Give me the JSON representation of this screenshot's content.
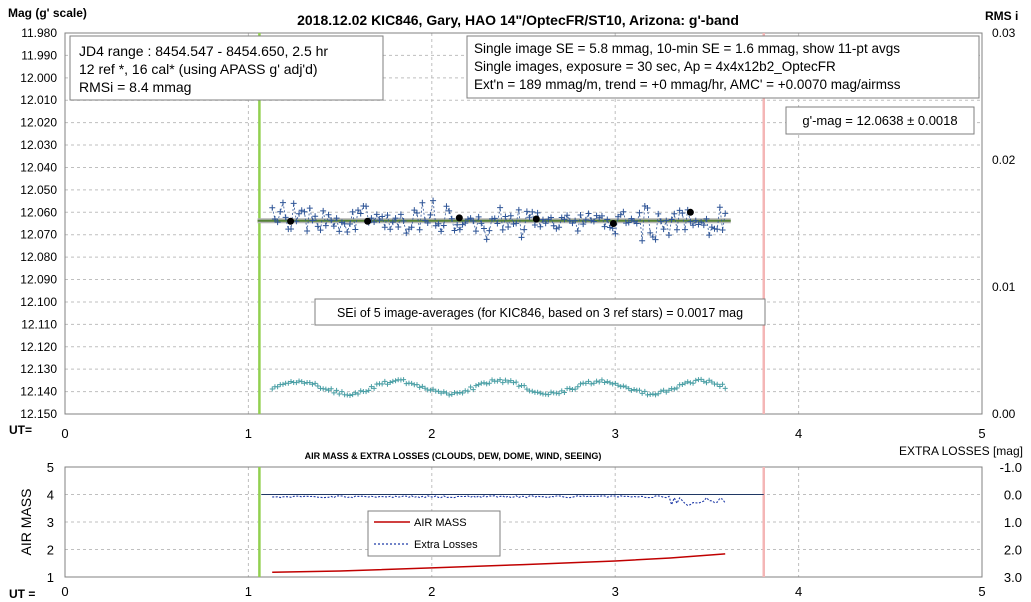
{
  "colors": {
    "grid": "#bfbfbf",
    "start_line": "#92d050",
    "end_line": "#f4b6b6",
    "mag_series": "#2f5597",
    "avg_points": "#000000",
    "mean_line": "#548235",
    "mean_band": "#b4b4b4",
    "rms_series": "#4a9fa5",
    "airmass_line": "#c00000",
    "extra_losses_line": "#1f3aa8",
    "box_border": "#7f7f7f"
  },
  "texts": {
    "title": "2018.12.02 KIC846, Gary, HAO 14\"/OptecFR/ST10, Arizona: g'-band",
    "mag_axis_label": "Mag (g' scale)",
    "rms_axis_label": "RMS i",
    "ut_label_top": "UT=",
    "ut_label_bottom": "UT =",
    "info_left": [
      "JD4 range : 8454.547 - 8454.650,  2.5  hr",
      "12 ref *, 16 cal* (using APASS g' adj'd)",
      "RMSi = 8.4 mmag"
    ],
    "info_right": [
      "Single image SE = 5.8 mmag, 10-min SE = 1.6 mmag, show  11-pt avgs",
      "Single images, exposure = 30 sec, Ap = 4x4x12b2_OptecFR",
      "Ext'n = 189 mmag/m, trend =  +0 mmag/hr, AMC' = +0.0070 mag/airmss"
    ],
    "gmag_box": "g'-mag = 12.0638 ± 0.0018",
    "sei_box": "SEi of 5 image-averages (for KIC846, based on 3 ref stars) = 0.0017 mag",
    "bottom_title": "AIR MASS & EXTRA LOSSES (CLOUDS, DEW, DOME, WIND, SEEING)",
    "extra_losses_label": "EXTRA LOSSES [mag]",
    "airmass_axis_label": "AIR MASS",
    "legend_airmass": "AIR MASS",
    "legend_extra": "Extra Losses"
  },
  "chart_data": [
    {
      "type": "scatter",
      "title": "2018.12.02 KIC846, Gary, HAO 14\"/OptecFR/ST10, Arizona: g'-band",
      "xlabel": "UT=",
      "ylabel": "Mag (g' scale)",
      "y2label": "RMS i",
      "xlim": [
        0,
        5
      ],
      "ylim": [
        11.98,
        12.15
      ],
      "y_inverted": true,
      "y2lim": [
        0,
        0.03
      ],
      "x_ticks": [
        "0",
        "1",
        "2",
        "3",
        "4",
        "5"
      ],
      "y_ticks": [
        "11.980",
        "11.990",
        "12.000",
        "12.010",
        "12.020",
        "12.030",
        "12.040",
        "12.050",
        "12.060",
        "12.070",
        "12.080",
        "12.090",
        "12.100",
        "12.110",
        "12.120",
        "12.130",
        "12.140",
        "12.150"
      ],
      "y2_ticks": [
        "0.00",
        "0.01",
        "0.02",
        "0.03"
      ],
      "grid": true,
      "vertical_markers": [
        {
          "x": 1.06,
          "color_key": "start_line"
        },
        {
          "x": 3.81,
          "color_key": "end_line"
        }
      ],
      "mean_mag": 12.0638,
      "mean_x_range": [
        1.05,
        3.63
      ],
      "seed": 846,
      "series": [
        {
          "kind": "single_images",
          "count": 170,
          "x_range": [
            1.13,
            3.6
          ],
          "center": 12.0638,
          "spread": 0.0058
        },
        {
          "kind": "image_averages",
          "x": [
            1.23,
            1.65,
            2.15,
            2.57,
            2.99,
            3.41
          ],
          "values": [
            12.064,
            12.064,
            12.0625,
            12.063,
            12.065,
            12.06
          ]
        },
        {
          "kind": "rms",
          "axis": "y2",
          "count": 170,
          "x_range": [
            1.13,
            3.6
          ],
          "center": 0.0021,
          "spread": 0.0005
        }
      ]
    },
    {
      "type": "line",
      "title": "AIR MASS & EXTRA LOSSES (CLOUDS, DEW, DOME, WIND, SEEING)",
      "xlabel": "UT =",
      "ylabel": "AIR MASS",
      "y2label": "EXTRA LOSSES [mag]",
      "xlim": [
        0,
        5
      ],
      "ylim": [
        1,
        5
      ],
      "y2lim": [
        -1.0,
        3.0
      ],
      "y2_inverted": true,
      "x_ticks": [
        "0",
        "1",
        "2",
        "3",
        "4",
        "5"
      ],
      "y_ticks": [
        "1",
        "2",
        "3",
        "4",
        "5"
      ],
      "y2_ticks": [
        "-1.0",
        "0.0",
        "1.0",
        "2.0",
        "3.0"
      ],
      "legend": "center-left",
      "vertical_markers": [
        {
          "x": 1.06,
          "color_key": "start_line"
        },
        {
          "x": 3.81,
          "color_key": "end_line"
        }
      ],
      "reference_line": {
        "extra_losses": 0.0,
        "x_range": [
          1.07,
          3.81
        ]
      },
      "series": [
        {
          "name": "AIR MASS",
          "x": [
            1.13,
            1.5,
            2.0,
            2.5,
            3.0,
            3.3,
            3.6
          ],
          "values": [
            1.17,
            1.22,
            1.33,
            1.45,
            1.58,
            1.69,
            1.84
          ]
        },
        {
          "name": "Extra Losses",
          "count": 170,
          "x_range": [
            1.13,
            3.6
          ],
          "center": 0.08,
          "spread": 0.07
        }
      ]
    }
  ]
}
